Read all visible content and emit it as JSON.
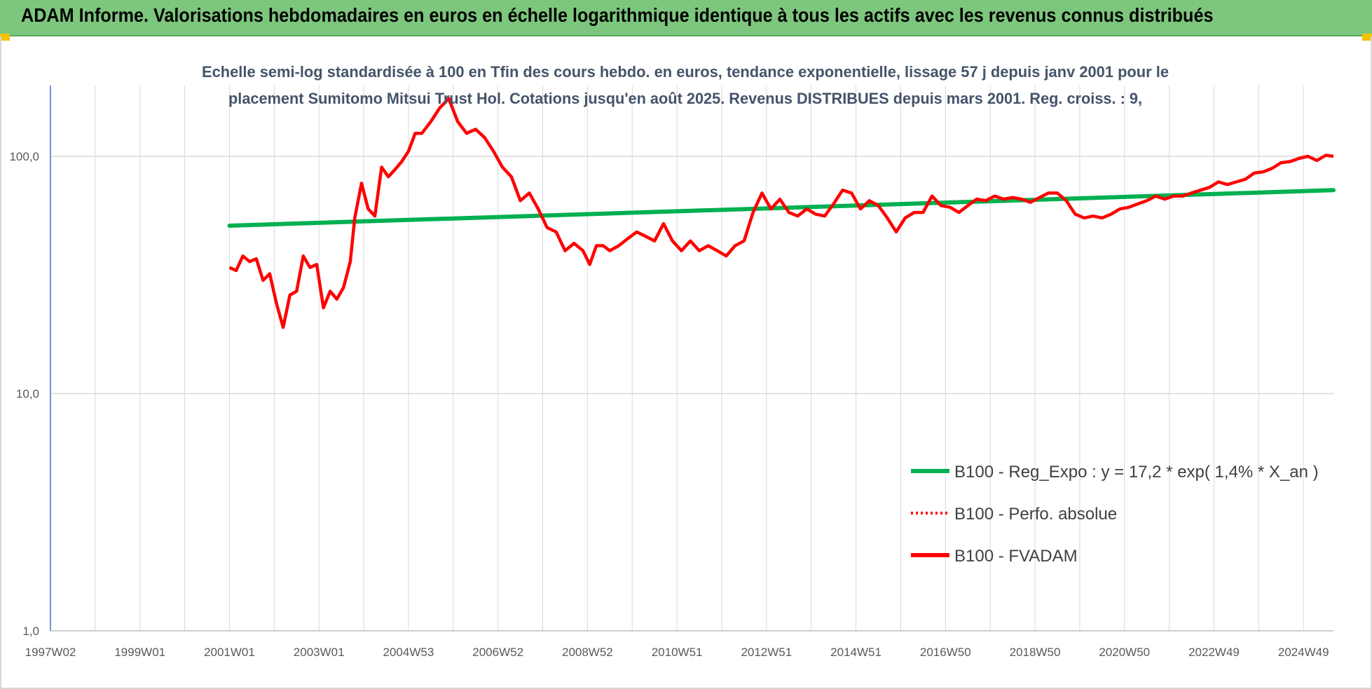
{
  "header": {
    "title": "ADAM Informe. Valorisations hebdomadaires en euros en échelle logarithmique identique à tous les actifs avec les revenus connus distribués"
  },
  "colors": {
    "banner": "#7dc67d",
    "regression": "#00b050",
    "fvadam": "#ff0000",
    "perf_absolue": "#ff0000",
    "grid": "#d9d9d9",
    "axis": "#4472c4"
  },
  "chart_data": {
    "type": "line",
    "title_lines": [
      "Echelle semi-log standardisée à 100 en Tfin des cours hebdo. en euros, tendance exponentielle, lissage 57 j depuis janv 2001 pour le",
      "placement Sumitomo Mitsui Trust Hol. Cotations jusqu'en août 2025. Revenus DISTRIBUES depuis mars 2001. Reg. croiss. : 9,"
    ],
    "y_scale": "log",
    "ylim": [
      1,
      180
    ],
    "y_ticks": [
      "1,0",
      "10,0",
      "100,0"
    ],
    "x_tick_labels": [
      "1997W02",
      "1999W01",
      "2001W01",
      "2003W01",
      "2004W53",
      "2006W52",
      "2008W52",
      "2010W51",
      "2012W51",
      "2014W51",
      "2016W50",
      "2018W50",
      "2020W50",
      "2022W49",
      "2024W49"
    ],
    "xlim": [
      1997.0,
      2025.67
    ],
    "grid": "vertical-and-horizontal",
    "legend_position": "bottom-right",
    "legend": [
      {
        "label": "B100 - Reg_Expo : y = 17,2 * exp( 1,4% *  X_an )",
        "style": "solid",
        "color": "#00b050"
      },
      {
        "label": "B100 - Perfo. absolue",
        "style": "dotted",
        "color": "#ff0000"
      },
      {
        "label": "B100 - FVADAM",
        "style": "solid",
        "color": "#ff0000"
      }
    ],
    "series": [
      {
        "name": "B100 - Reg_Expo : y = 17,2 * exp( 1,4% *  X_an )",
        "x": [
          2001.0,
          2025.67
        ],
        "y": [
          51,
          72
        ]
      },
      {
        "name": "B100 - FVADAM",
        "x": [
          2001.0,
          2001.15,
          2001.3,
          2001.45,
          2001.6,
          2001.75,
          2001.9,
          2002.05,
          2002.2,
          2002.35,
          2002.5,
          2002.65,
          2002.8,
          2002.95,
          2003.1,
          2003.25,
          2003.4,
          2003.55,
          2003.7,
          2003.8,
          2003.95,
          2004.1,
          2004.25,
          2004.4,
          2004.55,
          2004.7,
          2004.85,
          2005.0,
          2005.15,
          2005.3,
          2005.5,
          2005.7,
          2005.9,
          2006.1,
          2006.3,
          2006.5,
          2006.7,
          2006.9,
          2007.1,
          2007.3,
          2007.5,
          2007.7,
          2007.9,
          2008.1,
          2008.3,
          2008.5,
          2008.7,
          2008.9,
          2009.05,
          2009.2,
          2009.35,
          2009.5,
          2009.7,
          2009.9,
          2010.1,
          2010.3,
          2010.5,
          2010.7,
          2010.9,
          2011.1,
          2011.3,
          2011.5,
          2011.7,
          2011.9,
          2012.1,
          2012.3,
          2012.5,
          2012.7,
          2012.9,
          2013.1,
          2013.3,
          2013.5,
          2013.7,
          2013.9,
          2014.1,
          2014.3,
          2014.5,
          2014.7,
          2014.9,
          2015.1,
          2015.3,
          2015.5,
          2015.7,
          2015.9,
          2016.1,
          2016.3,
          2016.5,
          2016.7,
          2016.9,
          2017.1,
          2017.3,
          2017.5,
          2017.7,
          2017.9,
          2018.1,
          2018.3,
          2018.5,
          2018.7,
          2018.9,
          2019.1,
          2019.3,
          2019.5,
          2019.7,
          2019.9,
          2020.1,
          2020.3,
          2020.5,
          2020.7,
          2020.9,
          2021.1,
          2021.3,
          2021.5,
          2021.7,
          2021.9,
          2022.1,
          2022.3,
          2022.5,
          2022.7,
          2022.9,
          2023.1,
          2023.3,
          2023.5,
          2023.7,
          2023.9,
          2024.1,
          2024.3,
          2024.5,
          2024.7,
          2024.9,
          2025.1,
          2025.3,
          2025.5,
          2025.67
        ],
        "y": [
          34,
          33,
          38,
          36,
          37,
          30,
          32,
          24,
          19,
          26,
          27,
          38,
          34,
          35,
          23,
          27,
          25,
          28,
          36,
          55,
          77,
          60,
          56,
          90,
          82,
          88,
          95,
          105,
          125,
          125,
          140,
          160,
          175,
          140,
          125,
          130,
          120,
          105,
          90,
          82,
          65,
          70,
          60,
          50,
          48,
          40,
          43,
          40,
          35,
          42,
          42,
          40,
          42,
          45,
          48,
          46,
          44,
          52,
          44,
          40,
          44,
          40,
          42,
          40,
          38,
          42,
          44,
          58,
          70,
          60,
          66,
          58,
          56,
          60,
          57,
          56,
          63,
          72,
          70,
          60,
          65,
          62,
          55,
          48,
          55,
          58,
          58,
          68,
          62,
          61,
          58,
          62,
          66,
          65,
          68,
          66,
          67,
          66,
          64,
          67,
          70,
          70,
          65,
          57,
          55,
          56,
          55,
          57,
          60,
          61,
          63,
          65,
          68,
          66,
          68,
          68,
          70,
          72,
          74,
          78,
          76,
          78,
          80,
          85,
          86,
          89,
          94,
          95,
          98,
          100,
          96,
          101,
          100
        ]
      },
      {
        "name": "B100 - Perfo. absolue",
        "x": [],
        "y": []
      }
    ]
  }
}
